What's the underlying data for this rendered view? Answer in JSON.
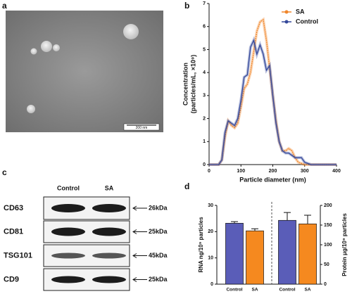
{
  "panel_labels": [
    "a",
    "b",
    "c",
    "d"
  ],
  "tem": {
    "scale_bar": "200 nm"
  },
  "blot": {
    "columns": [
      "Control",
      "SA"
    ],
    "rows": [
      {
        "label": "CD63",
        "size": "26kDa"
      },
      {
        "label": "CD81",
        "size": "25kDa"
      },
      {
        "label": "TSG101",
        "size": "45kDa"
      },
      {
        "label": "CD9",
        "size": "25kDa"
      }
    ]
  },
  "chart_data": [
    {
      "type": "line",
      "xlabel": "Particle diameter (nm)",
      "ylabel": [
        "Concentration",
        "(particles/mL, ×10⁹)"
      ],
      "x": [
        0,
        10,
        20,
        30,
        40,
        50,
        60,
        70,
        80,
        90,
        100,
        110,
        120,
        130,
        140,
        150,
        160,
        170,
        180,
        190,
        200,
        210,
        220,
        230,
        240,
        250,
        260,
        270,
        280,
        290,
        300,
        310,
        320,
        330,
        340,
        350,
        360,
        370,
        380,
        390,
        400
      ],
      "xlim": [
        0,
        400
      ],
      "xticks": [
        0,
        100,
        200,
        300,
        400
      ],
      "ylim": [
        0,
        7
      ],
      "yticks": [
        0,
        1,
        2,
        3,
        4,
        5,
        6,
        7
      ],
      "legend": "top-right",
      "series": [
        {
          "name": "SA",
          "color": "#f0862a",
          "values": [
            0,
            0,
            0,
            0,
            0.2,
            1.2,
            1.9,
            1.7,
            1.6,
            1.8,
            2.5,
            3.3,
            3.5,
            4.0,
            4.9,
            5.8,
            6.2,
            6.3,
            5.4,
            4.2,
            3.0,
            1.9,
            1.0,
            0.6,
            0.6,
            0.7,
            0.6,
            0.3,
            0.1,
            0.05,
            0,
            0,
            0,
            0,
            0,
            0,
            0,
            0,
            0,
            0,
            0
          ]
        },
        {
          "name": "Control",
          "color": "#34489a",
          "values": [
            0,
            0,
            0,
            0,
            0.2,
            1.4,
            1.9,
            1.8,
            1.7,
            2.0,
            2.8,
            3.8,
            3.9,
            5.1,
            5.4,
            4.8,
            5.2,
            4.8,
            4.1,
            4.3,
            3.0,
            1.8,
            1.0,
            0.6,
            0.5,
            0.5,
            0.4,
            0.3,
            0.3,
            0.3,
            0.1,
            0.05,
            0,
            0,
            0,
            0,
            0,
            0,
            0,
            0,
            0
          ]
        }
      ]
    },
    {
      "type": "bar",
      "categories": [
        "Control",
        "SA",
        "Control",
        "SA"
      ],
      "colors": [
        "#5a5db8",
        "#f5891f",
        "#5a5db8",
        "#f5891f"
      ],
      "ylabel": "RNA ng/10⁹ particles",
      "y2label": "Protein μg/10⁹ particles",
      "ylim": [
        0,
        30
      ],
      "yticks": [
        0,
        10,
        20,
        30
      ],
      "y2lim": [
        0,
        200
      ],
      "y2ticks": [
        0,
        50,
        100,
        150,
        200
      ],
      "series": [
        {
          "values": [
            23.2,
            20.3,
            null,
            null
          ],
          "errors": [
            0.6,
            0.8,
            null,
            null
          ]
        },
        {
          "axis": "y2",
          "values": [
            null,
            null,
            162,
            153
          ],
          "errors": [
            null,
            null,
            20,
            22
          ]
        }
      ]
    }
  ]
}
